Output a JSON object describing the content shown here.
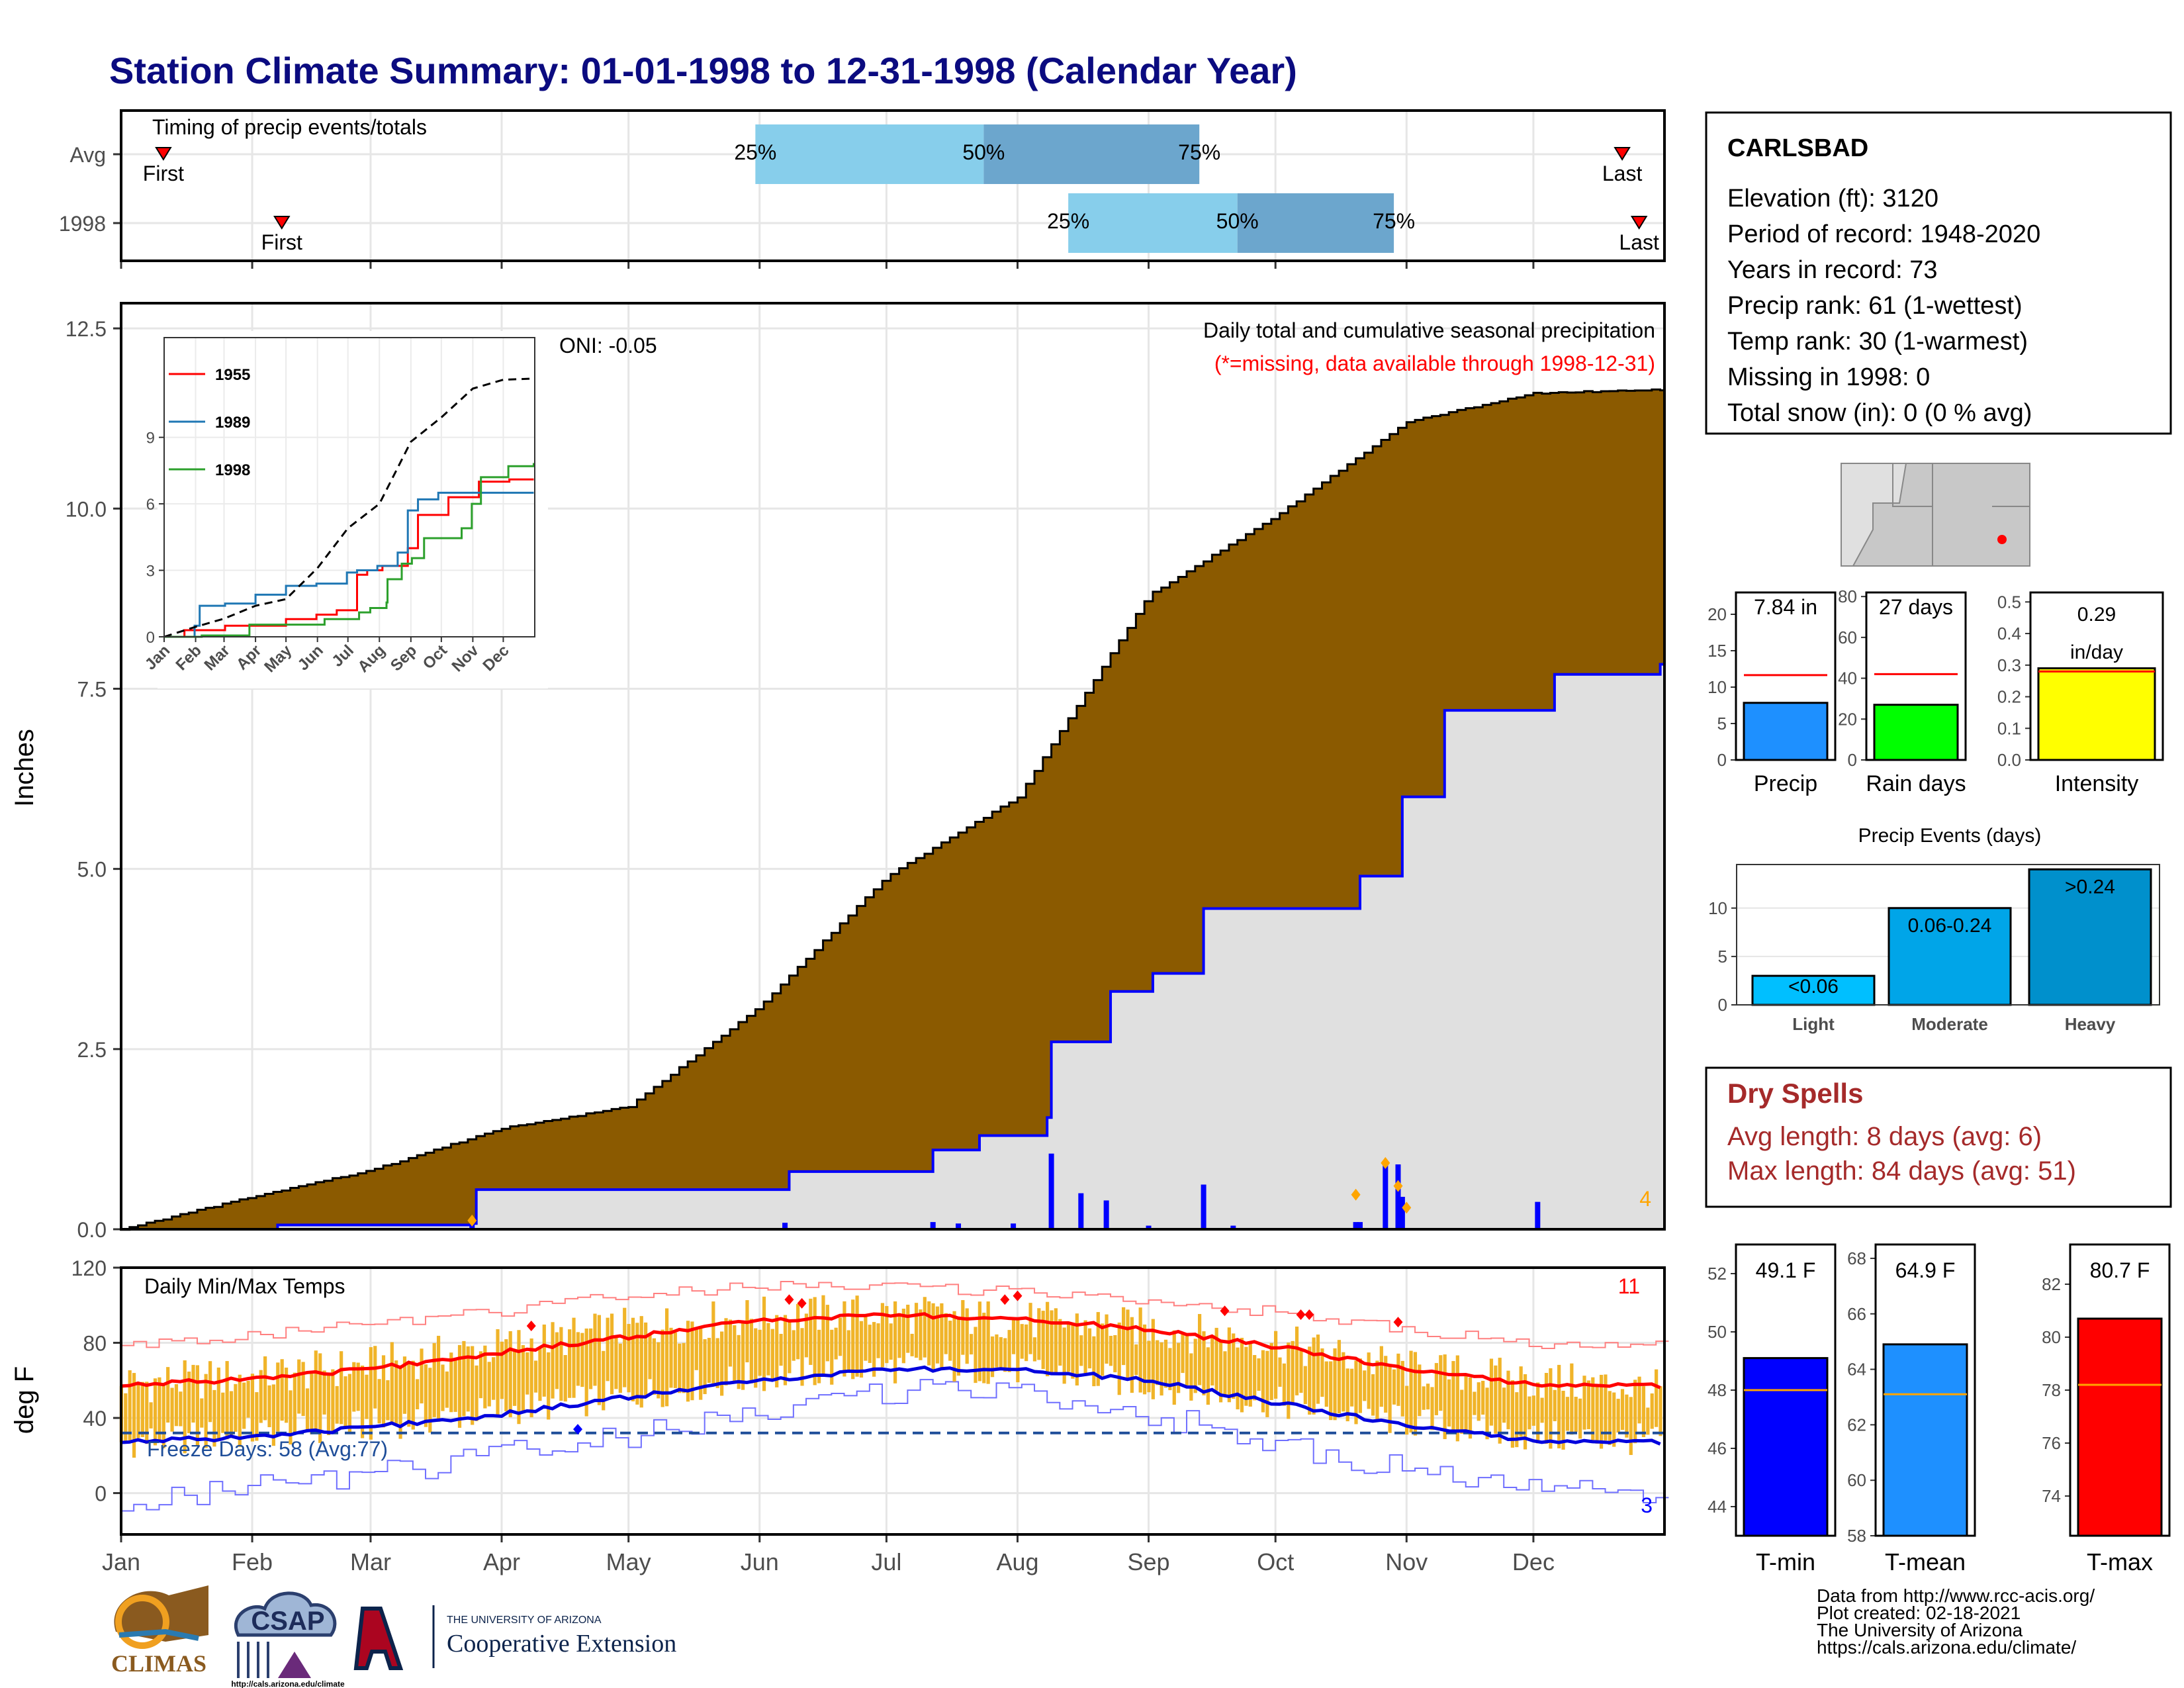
{
  "title": "Station Climate Summary: 01-01-1998 to 12-31-1998 (Calendar Year)",
  "colors": {
    "title": "#0b0b80",
    "brown": "#8B5A00",
    "gray_fill": "#e0e0e0",
    "blue": "#0000ff",
    "orange": "#F0B429",
    "red": "#ff0000",
    "dry_spell": "#a52a2a",
    "light_blue": "#87CEEB",
    "mid_blue": "#6ca6cd",
    "precip_bar": "#1E90FF",
    "rain_bar": "#00ff00",
    "intensity_bar": "#ffff00",
    "event_bar": "#1aa7e0"
  },
  "timing": {
    "title": "Timing of precip events/totals",
    "rows": [
      {
        "label": "Avg",
        "first_doy": 10,
        "last_doy": 355,
        "q25": 150,
        "q50": 204,
        "q75": 255,
        "first_label": "First",
        "last_label": "Last",
        "pct_labels": [
          "25%",
          "50%",
          "75%"
        ]
      },
      {
        "label": "1998",
        "first_doy": 38,
        "last_doy": 359,
        "q25": 224,
        "q50": 264,
        "q75": 301,
        "first_label": "First",
        "last_label": "Last",
        "pct_labels": [
          "25%",
          "50%",
          "75%"
        ]
      }
    ]
  },
  "months": [
    "Jan",
    "Feb",
    "Mar",
    "Apr",
    "May",
    "Jun",
    "Jul",
    "Aug",
    "Sep",
    "Oct",
    "Nov",
    "Dec"
  ],
  "month_start_doy": [
    0,
    31,
    59,
    90,
    120,
    151,
    181,
    212,
    243,
    273,
    304,
    334
  ],
  "precip_panel": {
    "ylabel": "Inches",
    "yticks": [
      "0.0",
      "2.5",
      "5.0",
      "7.5",
      "10.0",
      "12.5"
    ],
    "ytick_values": [
      0,
      2.5,
      5,
      7.5,
      10,
      12.5
    ],
    "ylim": [
      0,
      12.85
    ],
    "annotation_title": "Daily total and cumulative seasonal precipitation",
    "annotation_missing": "(*=missing, data available through 1998-12-31)",
    "oni": "ONI: -0.05",
    "count_label": "4"
  },
  "chart_data": [
    {
      "type": "area",
      "title": "Daily total and cumulative seasonal precipitation",
      "ylabel": "Inches",
      "xlim": [
        "Jan 1",
        "Dec 31"
      ],
      "ylim": [
        0,
        12.85
      ],
      "series": [
        {
          "name": "average cumulative",
          "x": [
            0,
            31,
            59,
            90,
            120,
            151,
            181,
            212,
            243,
            273,
            304,
            334,
            364
          ],
          "values": [
            0.0,
            0.45,
            0.82,
            1.4,
            1.7,
            3.1,
            4.9,
            6.0,
            8.8,
            9.9,
            11.2,
            11.6,
            11.65
          ]
        },
        {
          "name": "1998 cumulative",
          "x": [
            0,
            37,
            62,
            83,
            84,
            157,
            158,
            192,
            203,
            219,
            220,
            227,
            234,
            244,
            251,
            256,
            291,
            293,
            301,
            303,
            312,
            313,
            339,
            364
          ],
          "values": [
            0.0,
            0.06,
            0.06,
            0.08,
            0.55,
            0.55,
            0.8,
            1.1,
            1.3,
            1.55,
            2.6,
            2.6,
            3.3,
            3.55,
            3.55,
            4.45,
            4.45,
            4.9,
            4.9,
            6.0,
            6.0,
            7.2,
            7.7,
            7.84
          ]
        },
        {
          "name": "1998 daily",
          "x": [
            83,
            157,
            192,
            198,
            211,
            220,
            227,
            233,
            243,
            256,
            263,
            292,
            293,
            299,
            302,
            303,
            335
          ],
          "values": [
            0.08,
            0.09,
            0.1,
            0.08,
            0.08,
            1.05,
            0.5,
            0.4,
            0.05,
            0.62,
            0.05,
            0.1,
            0.1,
            0.95,
            0.9,
            0.45,
            0.38
          ]
        }
      ]
    },
    {
      "type": "line",
      "title": "",
      "xlabel": "",
      "ylabel": "",
      "categories": [
        "Jan",
        "Feb",
        "Mar",
        "Apr",
        "May",
        "Jun",
        "Jul",
        "Aug",
        "Sep",
        "Oct",
        "Nov",
        "Dec"
      ],
      "ylim": [
        0,
        13.5
      ],
      "yticks": [
        0,
        3,
        6,
        9
      ],
      "series": [
        {
          "name": "1955",
          "x": [
            0,
            20,
            60,
            100,
            120,
            150,
            170,
            190,
            200,
            215,
            220,
            240,
            250,
            280,
            310,
            340,
            364
          ],
          "values": [
            0,
            0.3,
            0.5,
            0.5,
            0.8,
            1.0,
            1.2,
            2.8,
            3.0,
            3.2,
            3.2,
            4.0,
            5.5,
            6.3,
            7.0,
            7.1,
            7.1
          ]
        },
        {
          "name": "1989",
          "x": [
            0,
            30,
            35,
            60,
            90,
            120,
            150,
            180,
            190,
            210,
            230,
            240,
            250,
            270,
            300,
            364
          ],
          "values": [
            0,
            0.5,
            1.4,
            1.5,
            1.9,
            2.3,
            2.4,
            2.9,
            3.0,
            3.2,
            3.8,
            5.7,
            6.2,
            6.5,
            6.5,
            6.5
          ]
        },
        {
          "name": "1998",
          "x": [
            0,
            37,
            62,
            84,
            157,
            158,
            192,
            203,
            219,
            220,
            234,
            244,
            256,
            291,
            293,
            301,
            303,
            312,
            339,
            364
          ],
          "values": [
            0,
            0.06,
            0.06,
            0.55,
            0.55,
            0.8,
            1.1,
            1.3,
            1.55,
            2.6,
            3.3,
            3.55,
            4.45,
            4.45,
            4.9,
            4.9,
            6.0,
            7.2,
            7.7,
            7.84
          ]
        },
        {
          "name": "average",
          "x": [
            0,
            31,
            59,
            90,
            120,
            151,
            181,
            212,
            243,
            273,
            304,
            334,
            364
          ],
          "values": [
            0,
            0.45,
            0.82,
            1.4,
            1.7,
            3.1,
            4.9,
            6.0,
            8.8,
            9.9,
            11.2,
            11.6,
            11.65
          ]
        }
      ]
    },
    {
      "type": "bar",
      "title": "",
      "categories": [
        "Precip"
      ],
      "values": [
        7.84
      ],
      "reference": 11.65,
      "ylim": [
        0,
        23
      ],
      "yticks": [
        0,
        5,
        10,
        15,
        20
      ],
      "value_label": "7.84 in"
    },
    {
      "type": "bar",
      "title": "",
      "categories": [
        "Rain days"
      ],
      "values": [
        27
      ],
      "reference": 42,
      "ylim": [
        0,
        82
      ],
      "yticks": [
        0,
        20,
        40,
        60,
        80
      ],
      "value_label": "27 days"
    },
    {
      "type": "bar",
      "title": "",
      "categories": [
        "Intensity"
      ],
      "values": [
        0.29
      ],
      "reference": 0.28,
      "ylim": [
        0,
        0.53
      ],
      "yticks": [
        0.0,
        0.1,
        0.2,
        0.3,
        0.4,
        0.5
      ],
      "value_label": [
        "0.29",
        "in/day"
      ]
    },
    {
      "type": "bar",
      "title": "Precip Events (days)",
      "categories": [
        "Light",
        "Moderate",
        "Heavy"
      ],
      "values": [
        3,
        10,
        14
      ],
      "bar_labels": [
        "<0.06",
        "0.06-0.24",
        ">0.24"
      ],
      "ylim": [
        0,
        14.5
      ],
      "yticks": [
        0,
        5,
        10
      ]
    },
    {
      "type": "bar",
      "title": "Daily Min/Max Temps",
      "ylabel": "deg F",
      "yticks": [
        0,
        40,
        80,
        120
      ],
      "ylim": [
        -22,
        120
      ],
      "series": [
        {
          "name": "avg max",
          "x": [
            0,
            31,
            59,
            90,
            120,
            151,
            181,
            212,
            243,
            273,
            304,
            334,
            364
          ],
          "values": [
            57,
            61,
            66,
            75,
            83,
            92,
            95,
            93,
            87,
            78,
            66,
            58,
            57
          ]
        },
        {
          "name": "avg min",
          "x": [
            0,
            31,
            59,
            90,
            120,
            151,
            181,
            212,
            243,
            273,
            304,
            334,
            364
          ],
          "values": [
            27,
            30,
            35,
            42,
            51,
            60,
            66,
            66,
            60,
            48,
            36,
            28,
            27
          ]
        },
        {
          "name": "record high",
          "x": [
            0,
            31,
            59,
            90,
            120,
            151,
            181,
            212,
            243,
            273,
            304,
            334,
            364
          ],
          "values": [
            78,
            84,
            90,
            97,
            105,
            110,
            110,
            107,
            103,
            96,
            87,
            79,
            78
          ]
        },
        {
          "name": "record low",
          "x": [
            0,
            31,
            59,
            90,
            120,
            151,
            181,
            212,
            243,
            273,
            304,
            334,
            364
          ],
          "values": [
            -5,
            3,
            10,
            20,
            30,
            42,
            54,
            55,
            42,
            25,
            12,
            3,
            -5
          ]
        },
        {
          "name": "1998 max",
          "x": [
            0,
            31,
            59,
            90,
            120,
            151,
            181,
            212,
            243,
            273,
            304,
            334,
            364
          ],
          "values": [
            58,
            62,
            68,
            78,
            88,
            94,
            96,
            92,
            88,
            80,
            66,
            60,
            55
          ]
        },
        {
          "name": "1998 min",
          "x": [
            0,
            31,
            59,
            90,
            120,
            151,
            181,
            212,
            243,
            273,
            304,
            334,
            364
          ],
          "values": [
            27,
            32,
            36,
            44,
            52,
            62,
            67,
            66,
            58,
            48,
            38,
            30,
            28
          ]
        }
      ],
      "freeze_line": 32,
      "freeze_label": "Freeze Days: 58 (Avg:77)",
      "record_high_count": "11",
      "record_low_count": "3"
    },
    {
      "type": "bar",
      "categories": [
        "T-min"
      ],
      "values": [
        49.1
      ],
      "reference": 48.0,
      "ylim": [
        43,
        53
      ],
      "yticks": [
        44,
        46,
        48,
        50,
        52
      ],
      "value_label": "49.1 F"
    },
    {
      "type": "bar",
      "categories": [
        "T-mean"
      ],
      "values": [
        64.9
      ],
      "reference": 63.1,
      "ylim": [
        58,
        68.5
      ],
      "yticks": [
        58,
        60,
        62,
        64,
        66,
        68
      ],
      "value_label": "64.9 F"
    },
    {
      "type": "bar",
      "categories": [
        "T-max"
      ],
      "values": [
        80.7
      ],
      "reference": 78.2,
      "ylim": [
        72.5,
        83.5
      ],
      "yticks": [
        74,
        76,
        78,
        80,
        82
      ],
      "value_label": "80.7 F"
    }
  ],
  "station": {
    "name": "CARLSBAD",
    "lines": [
      "Elevation (ft): 3120",
      "Period of record: 1948-2020",
      "Years in record: 73",
      "Precip rank: 61 (1-wettest)",
      "Temp rank: 30 (1-warmest)",
      "Missing in 1998: 0",
      "Total snow (in): 0 (0 % avg)"
    ]
  },
  "dry_spells": {
    "title": "Dry Spells",
    "avg": "Avg length: 8 days (avg: 6)",
    "max": "Max length: 84 days (avg: 51)"
  },
  "footer": {
    "credits": [
      "Data from http://www.rcc-acis.org/",
      "Plot created: 02-18-2021",
      "The University of Arizona",
      "https://cals.arizona.edu/climate/"
    ],
    "climas": "CLIMAS",
    "csap": "CSAP",
    "csap_url": "http://cals.arizona.edu/climate",
    "ua_small": "THE UNIVERSITY OF ARIZONA",
    "ua_big": "Cooperative Extension"
  }
}
